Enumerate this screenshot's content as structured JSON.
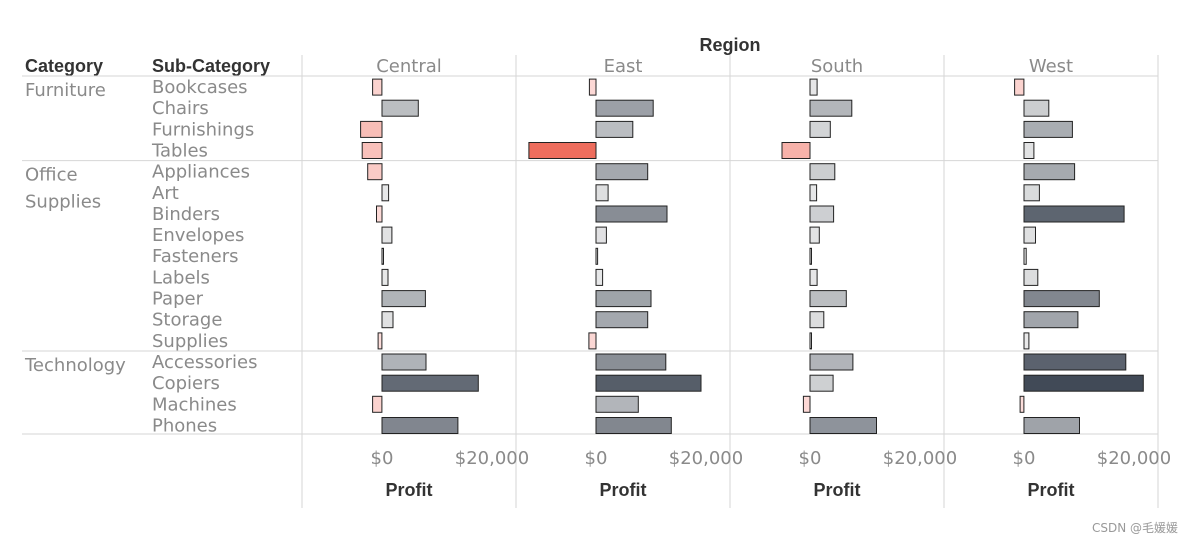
{
  "chart_data": {
    "type": "bar",
    "orientation": "horizontal",
    "column_header": "Region",
    "row_headers": [
      "Category",
      "Sub-Category"
    ],
    "regions": [
      "Central",
      "East",
      "South",
      "West"
    ],
    "axis_title": "Profit",
    "x_ticks": [
      {
        "value": 0,
        "label": "$0"
      },
      {
        "value": 20000,
        "label": "$20,000"
      }
    ],
    "groups": [
      {
        "category": "Furniture",
        "label_lines": [
          "Furniture"
        ],
        "subcategories": [
          "Bookcases",
          "Chairs",
          "Furnishings",
          "Tables"
        ]
      },
      {
        "category": "Office Supplies",
        "label_lines": [
          "Office",
          "Supplies"
        ],
        "subcategories": [
          "Appliances",
          "Art",
          "Binders",
          "Envelopes",
          "Fasteners",
          "Labels",
          "Paper",
          "Storage",
          "Supplies"
        ]
      },
      {
        "category": "Technology",
        "label_lines": [
          "Technology"
        ],
        "subcategories": [
          "Accessories",
          "Copiers",
          "Machines",
          "Phones"
        ]
      }
    ],
    "series": [
      {
        "name": "Central",
        "values": [
          -1700,
          6600,
          -3900,
          -3600,
          -2600,
          1200,
          -1000,
          1800,
          200,
          1100,
          7900,
          2000,
          -700,
          8000,
          17500,
          -1700,
          13800
        ]
      },
      {
        "name": "East",
        "values": [
          -1200,
          10400,
          6700,
          -12200,
          9400,
          2200,
          12900,
          1900,
          300,
          1200,
          10000,
          9400,
          -1300,
          12700,
          19100,
          7700,
          13700
        ]
      },
      {
        "name": "South",
        "values": [
          1300,
          7600,
          3700,
          -5100,
          4500,
          1200,
          4300,
          1700,
          200,
          1300,
          6600,
          2500,
          100,
          7800,
          4200,
          -1200,
          12100
        ]
      },
      {
        "name": "West",
        "values": [
          -1700,
          4500,
          8800,
          1800,
          9200,
          2800,
          18200,
          2100,
          400,
          2500,
          13700,
          9800,
          900,
          18500,
          21700,
          -700,
          10100
        ]
      }
    ],
    "color_scale": {
      "min": -12200,
      "max": 21700,
      "negative_max": "#ee6d5d",
      "negative_min": "#fde4e2",
      "positive_min": "#f0f0f0",
      "positive_max": "#414a57"
    },
    "gridlines": false
  },
  "watermark": "CSDN @毛媛媛"
}
